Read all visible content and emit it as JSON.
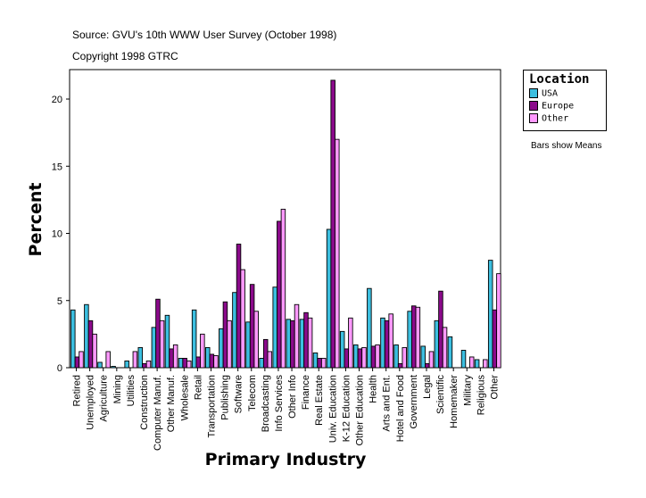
{
  "source": "Source: GVU's 10th WWW User Survey (October 1998)",
  "copyright": "Copyright 1998 GTRC",
  "note": "Bars show Means",
  "chart_data": {
    "type": "bar",
    "xlabel": "Primary Industry",
    "ylabel": "Percent",
    "ylim": [
      0,
      22
    ],
    "yticks": [
      0,
      5,
      10,
      15,
      20
    ],
    "grid": false,
    "legend_title": "Location",
    "legend_placement": "right",
    "categories": [
      "Retired",
      "Unemployed",
      "Agriculture",
      "Mining",
      "Utilities",
      "Construction",
      "Computer Manuf.",
      "Other Manuf.",
      "Wholesale",
      "Retail",
      "Transportation",
      "Publishing",
      "Software",
      "Telecom",
      "Broadcasting",
      "Info Services",
      "Other Info",
      "Finance",
      "Real Estate",
      "Univ. Education",
      "K-12 Education",
      "Other Education",
      "Health",
      "Arts and Ent.",
      "Hotel and Food",
      "Government",
      "Legal",
      "Scientific",
      "Homemaker",
      "Military",
      "Religious",
      "Other"
    ],
    "series": [
      {
        "name": "USA",
        "color": "#3cbfe0",
        "values": [
          4.3,
          4.7,
          0.4,
          0.1,
          0.5,
          1.5,
          3.0,
          3.9,
          0.7,
          4.3,
          1.5,
          2.9,
          5.6,
          3.4,
          0.7,
          6.0,
          3.6,
          3.6,
          1.1,
          10.3,
          2.7,
          1.7,
          5.9,
          3.7,
          1.7,
          4.2,
          1.6,
          3.5,
          2.3,
          1.3,
          0.6,
          8.0
        ]
      },
      {
        "name": "Europe",
        "color": "#8b0a8b",
        "values": [
          0.8,
          3.5,
          0,
          0,
          0,
          0.3,
          5.1,
          1.4,
          0.7,
          0.8,
          1.0,
          4.9,
          9.2,
          6.2,
          2.1,
          10.9,
          3.5,
          4.1,
          0.7,
          21.4,
          1.4,
          1.4,
          1.6,
          3.5,
          0.3,
          4.6,
          0.3,
          5.7,
          0,
          0,
          0,
          4.3
        ]
      },
      {
        "name": "Other",
        "color": "#ff99ff",
        "values": [
          1.2,
          2.5,
          1.2,
          0,
          1.2,
          0.5,
          3.5,
          1.7,
          0.5,
          2.5,
          0.9,
          3.5,
          7.3,
          4.2,
          1.2,
          11.8,
          4.7,
          3.7,
          0.7,
          17.0,
          3.7,
          1.5,
          1.7,
          4.0,
          1.5,
          4.5,
          1.2,
          3.0,
          0,
          0.8,
          0.6,
          7.0
        ]
      }
    ]
  }
}
